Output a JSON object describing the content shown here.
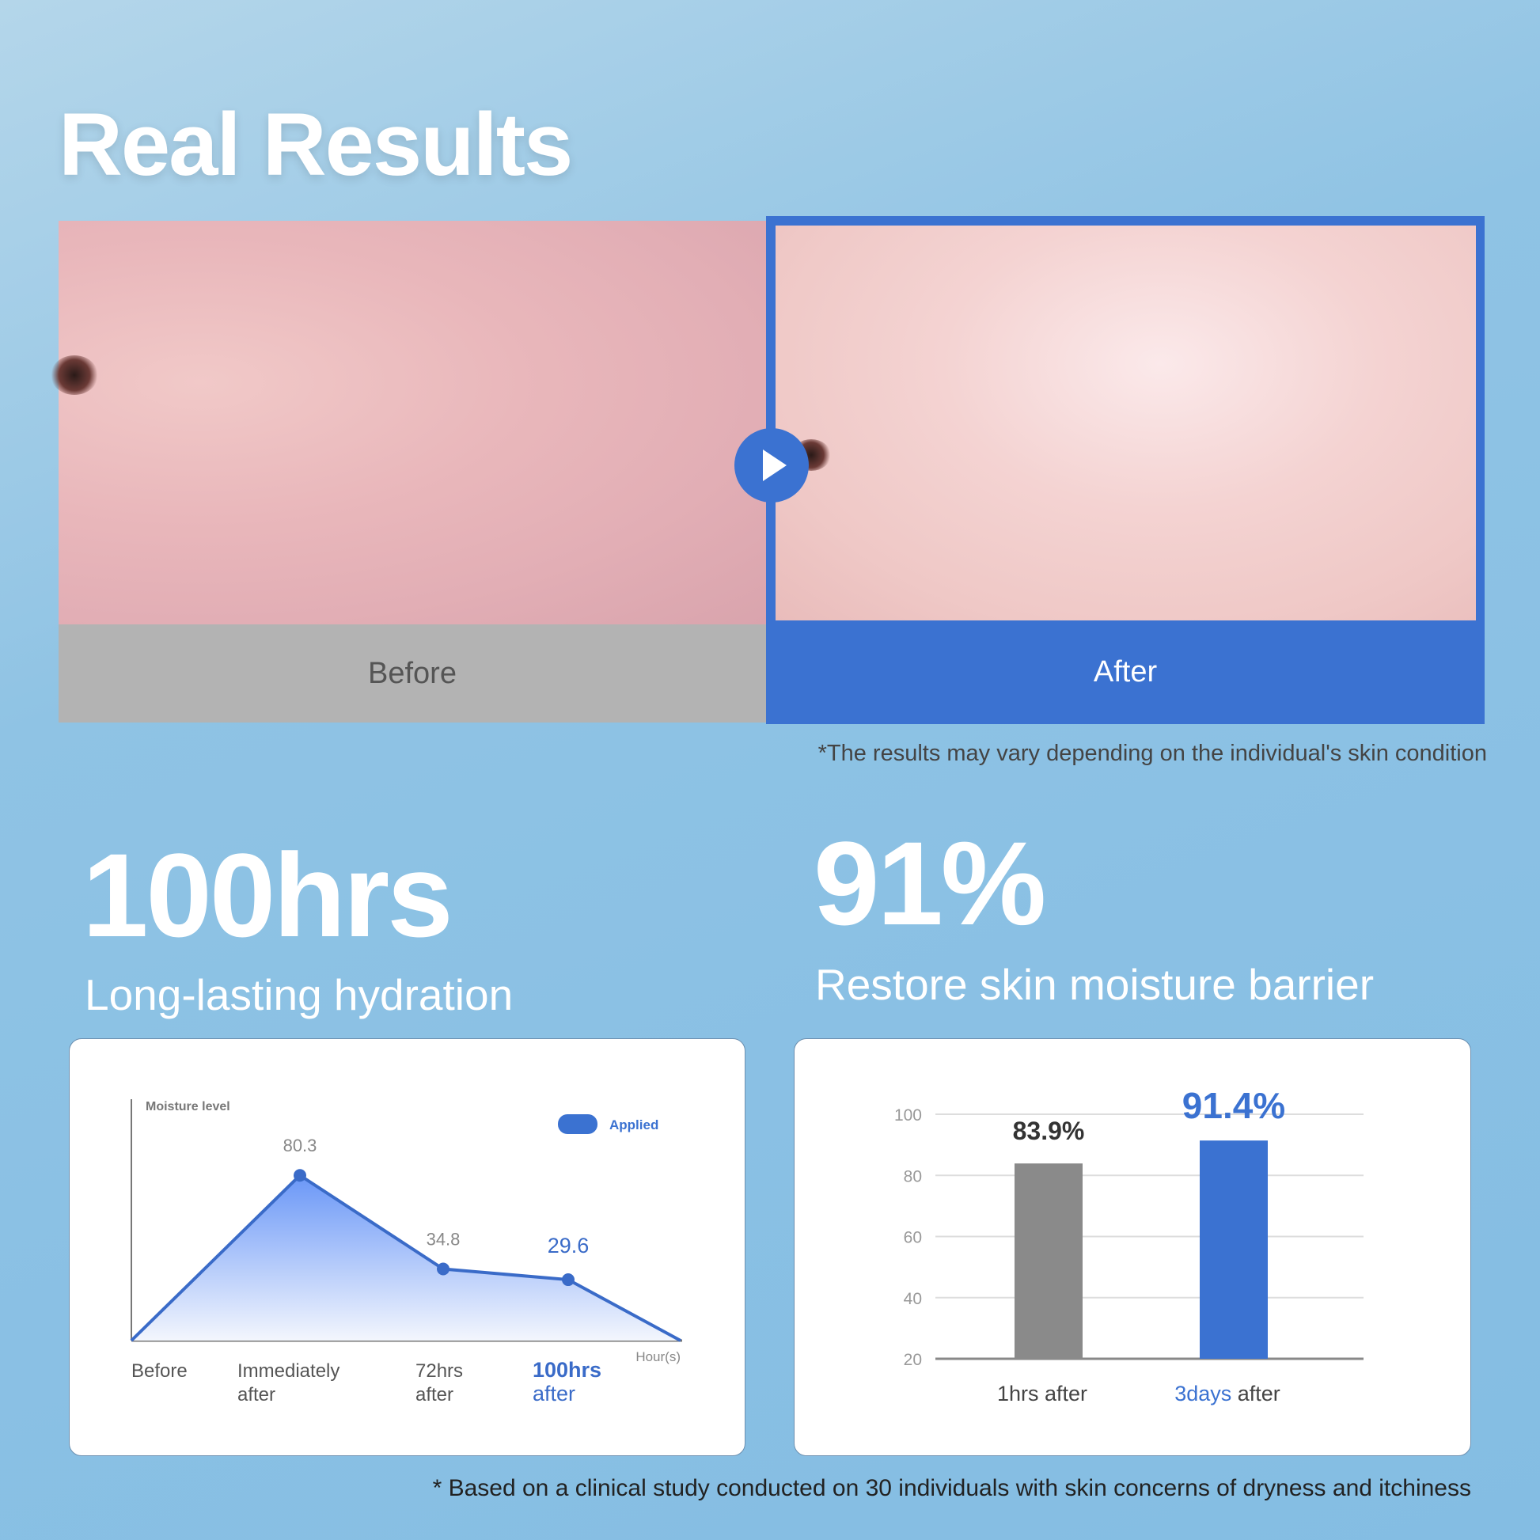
{
  "title": "Real Results",
  "photos": {
    "before_label": "Before",
    "after_label": "After",
    "disclaimer": "*The results may vary depending on the individual's skin condition"
  },
  "stats": [
    {
      "value": "100hrs",
      "caption": "Long-lasting hydration"
    },
    {
      "value": "91%",
      "caption": "Restore skin moisture barrier"
    }
  ],
  "footnote": "* Based on a clinical study conducted on 30 individuals with skin concerns of dryness and itchiness",
  "colors": {
    "accent": "#3b72d1",
    "gray_bar": "#8a8a8a",
    "card": "#ffffff"
  },
  "icons": {
    "play": "play-icon"
  },
  "chart_data": [
    {
      "type": "area",
      "ylabel": "Moisture level",
      "xlabel": "Hour(s)",
      "legend": {
        "label": "Applied",
        "placement": "top-right"
      },
      "categories": [
        "Before",
        "Immediately after",
        "72hrs after",
        "100hrs after"
      ],
      "series": [
        {
          "name": "Applied",
          "values": [
            0,
            80.3,
            34.8,
            29.6
          ]
        }
      ],
      "data_labels": [
        "",
        "80.3",
        "34.8",
        "29.6"
      ],
      "highlight_category": "100hrs after",
      "grid": false
    },
    {
      "type": "bar",
      "categories": [
        "1hrs after",
        "3days after"
      ],
      "category_parts": [
        [
          "",
          "1hrs after"
        ],
        [
          "3days",
          " after"
        ]
      ],
      "values": [
        83.9,
        91.4
      ],
      "data_labels": [
        "83.9%",
        "91.4%"
      ],
      "yticks": [
        100,
        80,
        60,
        40,
        20
      ],
      "ylim": [
        20,
        100
      ],
      "grid": true
    }
  ]
}
